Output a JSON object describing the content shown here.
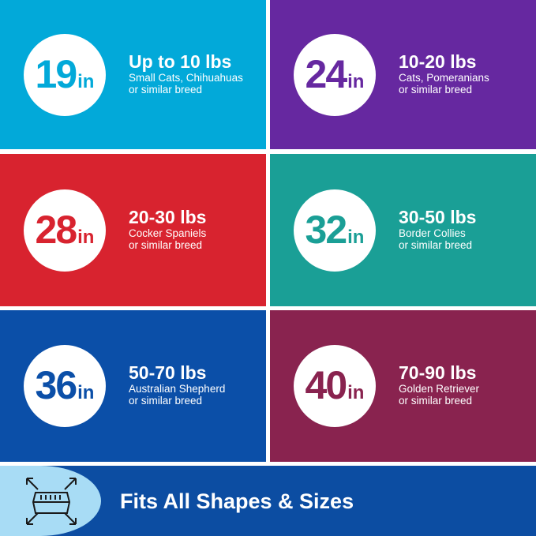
{
  "tiles": [
    {
      "size": "19",
      "unit": "in",
      "weight": "Up to 10 lbs",
      "line1": "Small Cats, Chihuahuas",
      "line2": "or similar breed",
      "color": "#02a9d9"
    },
    {
      "size": "24",
      "unit": "in",
      "weight": "10-20 lbs",
      "line1": "Cats, Pomeranians",
      "line2": "or similar breed",
      "color": "#6628a0"
    },
    {
      "size": "28",
      "unit": "in",
      "weight": "20-30 lbs",
      "line1": "Cocker Spaniels",
      "line2": "or similar breed",
      "color": "#d8232f"
    },
    {
      "size": "32",
      "unit": "in",
      "weight": "30-50 lbs",
      "line1": "Border Collies",
      "line2": "or similar breed",
      "color": "#1a9f96"
    },
    {
      "size": "36",
      "unit": "in",
      "weight": "50-70 lbs",
      "line1": "Australian Shepherd",
      "line2": "or similar breed",
      "color": "#0b4fa8"
    },
    {
      "size": "40",
      "unit": "in",
      "weight": "70-90 lbs",
      "line1": "Golden Retriever",
      "line2": "or similar breed",
      "color": "#89234f"
    }
  ],
  "banner": {
    "text": "Fits All Shapes & Sizes",
    "icon": "crate-expand-icon"
  }
}
